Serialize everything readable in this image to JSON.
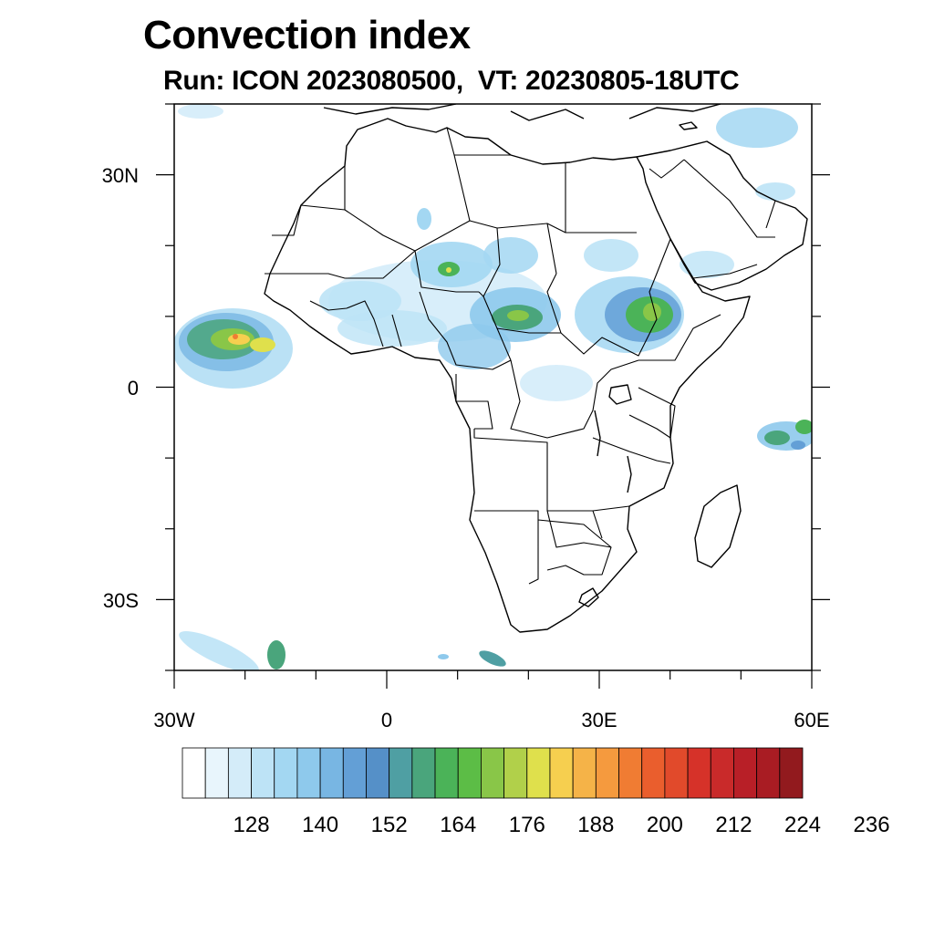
{
  "title": "Convection index",
  "subtitle": "Run: ICON 2023080500,  VT: 20230805-18UTC",
  "map": {
    "extent": {
      "lon": [
        -30,
        60
      ],
      "lat": [
        -40,
        40
      ]
    },
    "lon_labels": [
      "30W",
      "0",
      "30E",
      "60E"
    ],
    "lat_labels": [
      "30N",
      "0",
      "30S"
    ]
  },
  "colorbar": {
    "colors": [
      "#ffffff",
      "#e8f5fc",
      "#d4ecf9",
      "#bde3f6",
      "#a3d7f2",
      "#8ec9ec",
      "#78b6e3",
      "#639fd6",
      "#5590c8",
      "#4f9fa3",
      "#4aa57c",
      "#4bb358",
      "#5cbd46",
      "#89c648",
      "#b1d04a",
      "#dfe04c",
      "#f6cf4f",
      "#f5b348",
      "#f59a3e",
      "#f07c33",
      "#ea5e2d",
      "#e14a2b",
      "#d63229",
      "#c92a2a",
      "#b81f27",
      "#a91c23",
      "#921a1e"
    ],
    "labels": [
      "128",
      "140",
      "152",
      "164",
      "176",
      "188",
      "200",
      "212",
      "224",
      "236"
    ]
  }
}
